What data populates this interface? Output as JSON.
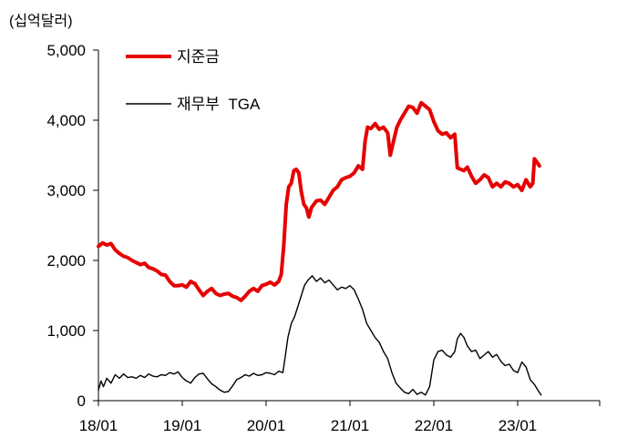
{
  "chart_data": {
    "type": "line",
    "unit_label": "(십억달러)",
    "ylim": [
      0,
      5000
    ],
    "y_ticks": [
      0,
      1000,
      2000,
      3000,
      4000,
      5000
    ],
    "y_tick_labels": [
      "0",
      "1,000",
      "2,000",
      "3,000",
      "4,000",
      "5,000"
    ],
    "x_ticks": [
      2018.0,
      2019.0,
      2020.0,
      2021.0,
      2022.0,
      2023.0
    ],
    "x_tick_labels": [
      "18/01",
      "19/01",
      "20/01",
      "21/01",
      "22/01",
      "23/01"
    ],
    "xlim": [
      2018.0,
      2024.0
    ],
    "grid": false,
    "legend": "top-left",
    "series": [
      {
        "name": "지준금",
        "color": "#e60000",
        "points": [
          [
            2018.0,
            2200
          ],
          [
            2018.05,
            2250
          ],
          [
            2018.1,
            2220
          ],
          [
            2018.15,
            2240
          ],
          [
            2018.2,
            2150
          ],
          [
            2018.25,
            2100
          ],
          [
            2018.3,
            2060
          ],
          [
            2018.35,
            2040
          ],
          [
            2018.4,
            2000
          ],
          [
            2018.45,
            1970
          ],
          [
            2018.5,
            1940
          ],
          [
            2018.55,
            1960
          ],
          [
            2018.6,
            1900
          ],
          [
            2018.65,
            1880
          ],
          [
            2018.7,
            1850
          ],
          [
            2018.75,
            1800
          ],
          [
            2018.8,
            1790
          ],
          [
            2018.85,
            1700
          ],
          [
            2018.9,
            1640
          ],
          [
            2018.95,
            1640
          ],
          [
            2019.0,
            1650
          ],
          [
            2019.05,
            1620
          ],
          [
            2019.1,
            1700
          ],
          [
            2019.15,
            1670
          ],
          [
            2019.2,
            1580
          ],
          [
            2019.25,
            1500
          ],
          [
            2019.3,
            1560
          ],
          [
            2019.35,
            1600
          ],
          [
            2019.4,
            1530
          ],
          [
            2019.45,
            1500
          ],
          [
            2019.5,
            1520
          ],
          [
            2019.55,
            1530
          ],
          [
            2019.6,
            1490
          ],
          [
            2019.65,
            1470
          ],
          [
            2019.7,
            1430
          ],
          [
            2019.75,
            1490
          ],
          [
            2019.8,
            1560
          ],
          [
            2019.85,
            1600
          ],
          [
            2019.9,
            1560
          ],
          [
            2019.95,
            1640
          ],
          [
            2020.0,
            1660
          ],
          [
            2020.05,
            1690
          ],
          [
            2020.1,
            1650
          ],
          [
            2020.15,
            1700
          ],
          [
            2020.18,
            1800
          ],
          [
            2020.21,
            2200
          ],
          [
            2020.24,
            2800
          ],
          [
            2020.27,
            3050
          ],
          [
            2020.3,
            3100
          ],
          [
            2020.33,
            3280
          ],
          [
            2020.36,
            3300
          ],
          [
            2020.39,
            3250
          ],
          [
            2020.42,
            2980
          ],
          [
            2020.45,
            2800
          ],
          [
            2020.48,
            2750
          ],
          [
            2020.51,
            2620
          ],
          [
            2020.54,
            2750
          ],
          [
            2020.57,
            2800
          ],
          [
            2020.6,
            2850
          ],
          [
            2020.65,
            2860
          ],
          [
            2020.7,
            2800
          ],
          [
            2020.75,
            2900
          ],
          [
            2020.8,
            3000
          ],
          [
            2020.85,
            3050
          ],
          [
            2020.9,
            3150
          ],
          [
            2020.95,
            3180
          ],
          [
            2021.0,
            3200
          ],
          [
            2021.05,
            3250
          ],
          [
            2021.1,
            3350
          ],
          [
            2021.15,
            3300
          ],
          [
            2021.18,
            3700
          ],
          [
            2021.21,
            3900
          ],
          [
            2021.25,
            3880
          ],
          [
            2021.3,
            3950
          ],
          [
            2021.35,
            3870
          ],
          [
            2021.4,
            3900
          ],
          [
            2021.45,
            3820
          ],
          [
            2021.48,
            3500
          ],
          [
            2021.52,
            3700
          ],
          [
            2021.56,
            3900
          ],
          [
            2021.6,
            4000
          ],
          [
            2021.65,
            4100
          ],
          [
            2021.7,
            4200
          ],
          [
            2021.75,
            4180
          ],
          [
            2021.8,
            4100
          ],
          [
            2021.85,
            4250
          ],
          [
            2021.9,
            4200
          ],
          [
            2021.95,
            4150
          ],
          [
            2022.0,
            3980
          ],
          [
            2022.05,
            3850
          ],
          [
            2022.1,
            3800
          ],
          [
            2022.15,
            3820
          ],
          [
            2022.2,
            3750
          ],
          [
            2022.25,
            3800
          ],
          [
            2022.28,
            3320
          ],
          [
            2022.32,
            3300
          ],
          [
            2022.36,
            3280
          ],
          [
            2022.4,
            3330
          ],
          [
            2022.45,
            3200
          ],
          [
            2022.5,
            3100
          ],
          [
            2022.55,
            3150
          ],
          [
            2022.6,
            3220
          ],
          [
            2022.65,
            3180
          ],
          [
            2022.7,
            3050
          ],
          [
            2022.75,
            3100
          ],
          [
            2022.8,
            3050
          ],
          [
            2022.85,
            3120
          ],
          [
            2022.9,
            3100
          ],
          [
            2022.95,
            3050
          ],
          [
            2023.0,
            3080
          ],
          [
            2023.05,
            3000
          ],
          [
            2023.1,
            3150
          ],
          [
            2023.15,
            3050
          ],
          [
            2023.18,
            3100
          ],
          [
            2023.2,
            3450
          ],
          [
            2023.23,
            3400
          ],
          [
            2023.26,
            3350
          ]
        ]
      },
      {
        "name": "재무부  TGA",
        "color": "#000000",
        "points": [
          [
            2018.0,
            150
          ],
          [
            2018.03,
            280
          ],
          [
            2018.06,
            200
          ],
          [
            2018.1,
            320
          ],
          [
            2018.15,
            250
          ],
          [
            2018.2,
            370
          ],
          [
            2018.25,
            320
          ],
          [
            2018.3,
            380
          ],
          [
            2018.35,
            330
          ],
          [
            2018.4,
            340
          ],
          [
            2018.45,
            320
          ],
          [
            2018.5,
            360
          ],
          [
            2018.55,
            330
          ],
          [
            2018.6,
            380
          ],
          [
            2018.65,
            350
          ],
          [
            2018.7,
            340
          ],
          [
            2018.75,
            370
          ],
          [
            2018.8,
            360
          ],
          [
            2018.85,
            400
          ],
          [
            2018.9,
            380
          ],
          [
            2018.95,
            410
          ],
          [
            2019.0,
            330
          ],
          [
            2019.05,
            280
          ],
          [
            2019.1,
            250
          ],
          [
            2019.15,
            330
          ],
          [
            2019.2,
            380
          ],
          [
            2019.25,
            390
          ],
          [
            2019.3,
            310
          ],
          [
            2019.35,
            240
          ],
          [
            2019.4,
            200
          ],
          [
            2019.45,
            150
          ],
          [
            2019.5,
            120
          ],
          [
            2019.55,
            130
          ],
          [
            2019.6,
            210
          ],
          [
            2019.65,
            300
          ],
          [
            2019.7,
            330
          ],
          [
            2019.75,
            370
          ],
          [
            2019.8,
            350
          ],
          [
            2019.85,
            390
          ],
          [
            2019.9,
            360
          ],
          [
            2019.95,
            370
          ],
          [
            2020.0,
            400
          ],
          [
            2020.05,
            390
          ],
          [
            2020.1,
            370
          ],
          [
            2020.15,
            420
          ],
          [
            2020.2,
            400
          ],
          [
            2020.23,
            650
          ],
          [
            2020.26,
            900
          ],
          [
            2020.3,
            1100
          ],
          [
            2020.34,
            1200
          ],
          [
            2020.38,
            1350
          ],
          [
            2020.42,
            1500
          ],
          [
            2020.46,
            1650
          ],
          [
            2020.5,
            1720
          ],
          [
            2020.55,
            1780
          ],
          [
            2020.6,
            1700
          ],
          [
            2020.65,
            1750
          ],
          [
            2020.7,
            1680
          ],
          [
            2020.75,
            1720
          ],
          [
            2020.8,
            1650
          ],
          [
            2020.85,
            1580
          ],
          [
            2020.9,
            1620
          ],
          [
            2020.95,
            1600
          ],
          [
            2021.0,
            1640
          ],
          [
            2021.05,
            1580
          ],
          [
            2021.1,
            1450
          ],
          [
            2021.15,
            1300
          ],
          [
            2021.2,
            1100
          ],
          [
            2021.25,
            1000
          ],
          [
            2021.3,
            900
          ],
          [
            2021.35,
            830
          ],
          [
            2021.4,
            700
          ],
          [
            2021.45,
            600
          ],
          [
            2021.5,
            400
          ],
          [
            2021.55,
            250
          ],
          [
            2021.6,
            180
          ],
          [
            2021.65,
            120
          ],
          [
            2021.7,
            100
          ],
          [
            2021.75,
            160
          ],
          [
            2021.8,
            90
          ],
          [
            2021.85,
            120
          ],
          [
            2021.9,
            80
          ],
          [
            2021.95,
            200
          ],
          [
            2022.0,
            580
          ],
          [
            2022.05,
            700
          ],
          [
            2022.1,
            720
          ],
          [
            2022.15,
            650
          ],
          [
            2022.2,
            620
          ],
          [
            2022.25,
            700
          ],
          [
            2022.28,
            880
          ],
          [
            2022.32,
            960
          ],
          [
            2022.36,
            900
          ],
          [
            2022.4,
            780
          ],
          [
            2022.45,
            700
          ],
          [
            2022.5,
            720
          ],
          [
            2022.55,
            600
          ],
          [
            2022.6,
            650
          ],
          [
            2022.65,
            700
          ],
          [
            2022.7,
            620
          ],
          [
            2022.75,
            660
          ],
          [
            2022.8,
            560
          ],
          [
            2022.85,
            500
          ],
          [
            2022.9,
            520
          ],
          [
            2022.95,
            430
          ],
          [
            2023.0,
            400
          ],
          [
            2023.05,
            550
          ],
          [
            2023.1,
            480
          ],
          [
            2023.15,
            300
          ],
          [
            2023.2,
            230
          ],
          [
            2023.24,
            150
          ],
          [
            2023.28,
            80
          ]
        ]
      }
    ]
  }
}
